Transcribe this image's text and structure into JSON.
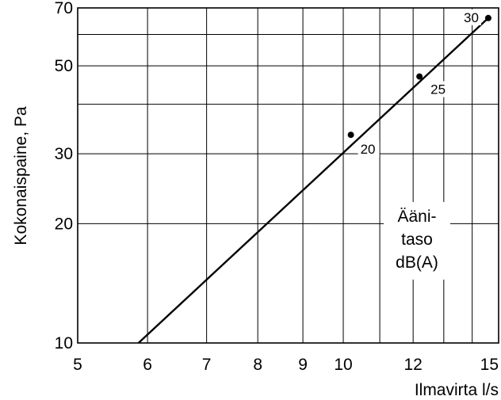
{
  "chart_data": {
    "type": "line",
    "title": "",
    "xlabel": "Ilmavirta l/s",
    "ylabel": "Kokonaispaine, Pa",
    "xscale": "log",
    "yscale": "log",
    "xlim": [
      5,
      15
    ],
    "ylim": [
      10,
      70
    ],
    "grid": true,
    "x_ticks": [
      5,
      6,
      7,
      8,
      9,
      10,
      12,
      15
    ],
    "y_ticks": [
      10,
      20,
      30,
      50,
      70
    ],
    "x_gridlines": [
      6,
      7,
      8,
      9,
      10,
      11,
      12,
      13,
      14
    ],
    "y_gridlines": [
      20,
      30,
      40,
      50,
      60
    ],
    "series": [
      {
        "x": [
          5.86,
          14.6
        ],
        "y": [
          10,
          66
        ]
      }
    ],
    "points": [
      {
        "x": 10.2,
        "y": 33.5,
        "label": "20"
      },
      {
        "x": 12.2,
        "y": 47,
        "label": "25"
      },
      {
        "x": 14.6,
        "y": 66,
        "label": "30"
      }
    ],
    "legend_lines": [
      "Ääni-",
      "taso",
      "dB(A)"
    ]
  }
}
